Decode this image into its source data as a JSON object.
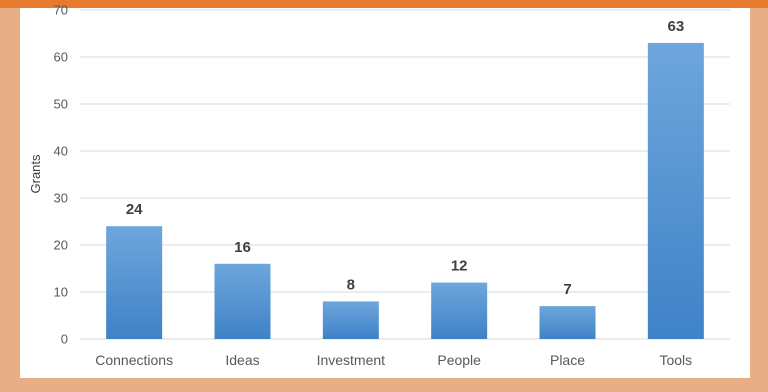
{
  "chart_data": {
    "type": "bar",
    "title": "",
    "xlabel": "",
    "ylabel": "Grants",
    "categories": [
      "Connections",
      "Ideas",
      "Investment",
      "People",
      "Place",
      "Tools"
    ],
    "values": [
      24,
      16,
      8,
      12,
      7,
      63
    ],
    "data_labels": [
      "24",
      "16",
      "8",
      "12",
      "7",
      "63"
    ],
    "ylim": [
      0,
      70
    ],
    "yticks": [
      "0",
      "10",
      "20",
      "30",
      "40",
      "50",
      "60",
      "70"
    ],
    "grid": true,
    "legend": "none",
    "colors": {
      "bar_top": "#6ea6dc",
      "bar_bottom": "#3f82c7",
      "grid": "#d9d9d9",
      "background": "#ffffff",
      "frame": "#e8ae86",
      "top_band": "#e67a2e"
    }
  }
}
